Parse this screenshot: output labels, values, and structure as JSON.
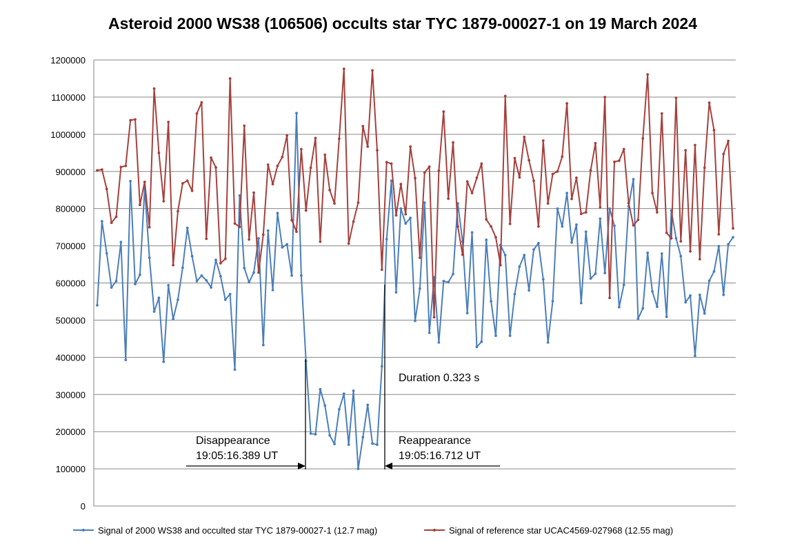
{
  "chart_data": {
    "type": "line",
    "title": "Asteroid 2000 WS38 (106506) occults star TYC 1879-00027-1 on 19 March 2024",
    "xlabel": "",
    "ylabel": "",
    "ylim": [
      0,
      1200000
    ],
    "yticks": [
      0,
      100000,
      200000,
      300000,
      400000,
      500000,
      600000,
      700000,
      800000,
      900000,
      1000000,
      1100000,
      1200000
    ],
    "ytick_labels": [
      "0",
      "100000",
      "200000",
      "300000",
      "400000",
      "500000",
      "600000",
      "700000",
      "800000",
      "900000",
      "1000000",
      "1100000",
      "1200000"
    ],
    "grid": true,
    "legend_position": "bottom",
    "series": [
      {
        "name": "Signal of 2000 WS38 and occulted star TYC 1879-00027-1 (12.7 mag)",
        "color": "#4a7ebb",
        "values": [
          540000,
          766000,
          680000,
          588000,
          605000,
          710000,
          393000,
          874000,
          597000,
          622000,
          855000,
          668000,
          523000,
          560000,
          388000,
          594000,
          503000,
          555000,
          641000,
          748000,
          672000,
          605000,
          620000,
          607000,
          588000,
          662000,
          618000,
          555000,
          570000,
          367000,
          835000,
          640000,
          602000,
          628000,
          720000,
          433000,
          741000,
          581000,
          788000,
          696000,
          704000,
          620000,
          1057000,
          620000,
          390000,
          195000,
          193000,
          314000,
          270000,
          190000,
          167000,
          260000,
          302000,
          165000,
          310000,
          100000,
          185000,
          272000,
          168000,
          165000,
          376000,
          718000,
          875000,
          575000,
          800000,
          760000,
          775000,
          498000,
          585000,
          816000,
          466000,
          615000,
          440000,
          605000,
          602000,
          624000,
          814000,
          712000,
          519000,
          736000,
          428000,
          442000,
          716000,
          551000,
          458000,
          702000,
          675000,
          458000,
          570000,
          644000,
          675000,
          580000,
          690000,
          707000,
          610000,
          440000,
          551000,
          800000,
          752000,
          842000,
          709000,
          757000,
          546000,
          738000,
          612000,
          625000,
          773000,
          627000,
          800000,
          754000,
          535000,
          595000,
          807000,
          879000,
          504000,
          532000,
          681000,
          577000,
          536000,
          679000,
          509000,
          795000,
          720000,
          672000,
          548000,
          566000,
          404000,
          568000,
          518000,
          606000,
          631000,
          699000,
          568000,
          704000,
          723000
        ]
      },
      {
        "name": "Signal of reference star UCAC4569-027968 (12.55 mag)",
        "color": "#a5403c",
        "values": [
          903000,
          905000,
          853000,
          762000,
          778000,
          912000,
          915000,
          1038000,
          1040000,
          810000,
          872000,
          750000,
          1123000,
          950000,
          820000,
          1033000,
          648000,
          793000,
          868000,
          875000,
          848000,
          1056000,
          1086000,
          719000,
          937000,
          911000,
          653000,
          665000,
          1150000,
          760000,
          751000,
          1023000,
          717000,
          843000,
          628000,
          730000,
          918000,
          866000,
          915000,
          939000,
          997000,
          769000,
          738000,
          960000,
          795000,
          910000,
          990000,
          711000,
          945000,
          850000,
          814000,
          988000,
          1176000,
          706000,
          765000,
          816000,
          1022000,
          967000,
          1172000,
          957000,
          636000,
          925000,
          921000,
          782000,
          866000,
          785000,
          967000,
          882000,
          668000,
          897000,
          913000,
          508000,
          902000,
          1061000,
          827000,
          978000,
          752000,
          676000,
          873000,
          842000,
          883000,
          921000,
          771000,
          752000,
          723000,
          648000,
          1103000,
          759000,
          936000,
          884000,
          993000,
          930000,
          875000,
          752000,
          983000,
          814000,
          893000,
          900000,
          940000,
          1083000,
          826000,
          883000,
          786000,
          790000,
          903000,
          976000,
          804000,
          1100000,
          560000,
          926000,
          929000,
          960000,
          815000,
          755000,
          770000,
          989000,
          1161000,
          842000,
          790000,
          1056000,
          735000,
          720000,
          1098000,
          712000,
          957000,
          685000,
          971000,
          664000,
          910000,
          1085000,
          1011000,
          731000,
          947000,
          982000,
          747000
        ]
      }
    ],
    "annotations": {
      "duration": "Duration 0.323 s",
      "disappearance_title": "Disappearance",
      "disappearance_time": "19:05:16.389 UT",
      "reappearance_title": "Reappearance",
      "reappearance_time": "19:05:16.712 UT"
    }
  }
}
